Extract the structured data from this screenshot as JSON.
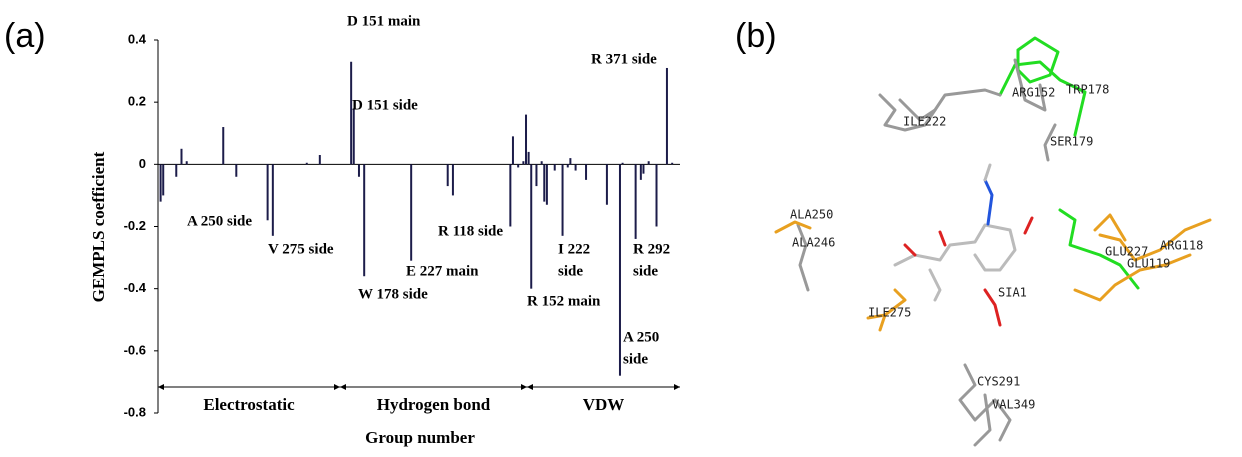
{
  "chart_data": {
    "type": "bar",
    "x": [
      1,
      2,
      7,
      9,
      11,
      25,
      30,
      42,
      44,
      57,
      62,
      74,
      75,
      77,
      79,
      97,
      111,
      113,
      135,
      136,
      138,
      140,
      141,
      142,
      143,
      145,
      147,
      148,
      149,
      152,
      155,
      157,
      158,
      160,
      164,
      172,
      177,
      178,
      183,
      185,
      186,
      188,
      191,
      195,
      197
    ],
    "values": [
      -0.12,
      -0.1,
      -0.04,
      0.05,
      0.01,
      0.12,
      -0.04,
      -0.18,
      -0.23,
      0.005,
      0.03,
      0.33,
      0.18,
      -0.04,
      -0.36,
      -0.31,
      -0.07,
      -0.1,
      -0.2,
      0.09,
      -0.01,
      0.01,
      0.16,
      0.04,
      -0.4,
      -0.07,
      0.01,
      -0.12,
      -0.13,
      -0.02,
      -0.23,
      -0.01,
      0.02,
      -0.02,
      -0.05,
      -0.13,
      -0.68,
      0.005,
      -0.24,
      -0.05,
      -0.03,
      0.01,
      -0.2,
      0.31,
      0.005
    ],
    "color": "#1c1c4a",
    "xlim": [
      0,
      200
    ],
    "ylim": [
      -0.8,
      0.4
    ],
    "yticks": [
      -0.8,
      -0.6,
      -0.4,
      -0.2,
      0,
      0.2,
      0.4
    ],
    "ylabel": "GEMPLS coefficient",
    "xlabel": "Group number",
    "sections": [
      "Electrostatic",
      "Hydrogen bond",
      "VDW"
    ],
    "annotations": [
      {
        "lines": [
          "D 151 main"
        ]
      },
      {
        "lines": [
          "D 151 side"
        ]
      },
      {
        "lines": [
          "R 371 side"
        ]
      },
      {
        "lines": [
          "A 250 side"
        ]
      },
      {
        "lines": [
          "V 275 side"
        ]
      },
      {
        "lines": [
          "R 118 side"
        ]
      },
      {
        "lines": [
          "E 227 main"
        ]
      },
      {
        "lines": [
          "W 178 side"
        ]
      },
      {
        "lines": [
          "I 222",
          "side"
        ]
      },
      {
        "lines": [
          "R 292",
          "side"
        ]
      },
      {
        "lines": [
          "R 152 main"
        ]
      },
      {
        "lines": [
          "A 250",
          "side"
        ]
      }
    ]
  },
  "panel_labels": [
    "(a)",
    "(b)"
  ],
  "structure_labels": [
    "ILE222",
    "ARG152",
    "TRP178",
    "SER179",
    "ALA250",
    "ALA246",
    "GLU227",
    "ARG118",
    "GLU119",
    "SIA1",
    "ILE275",
    "CYS291",
    "VAL349"
  ]
}
